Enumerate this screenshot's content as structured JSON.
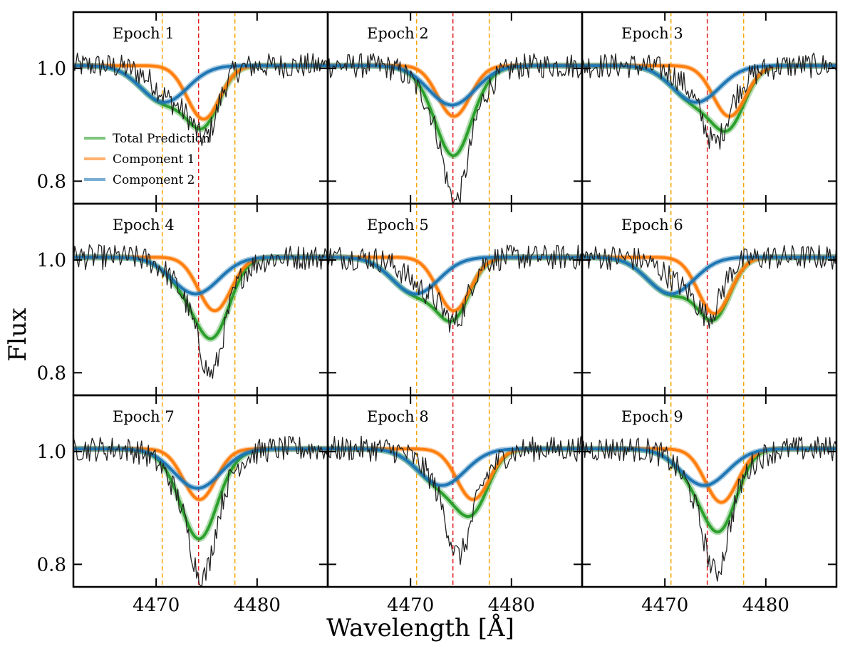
{
  "chart_data": {
    "type": "line",
    "layout": "3x3 grid of panels, shared axes",
    "xlabel": "Wavelength [Å]",
    "ylabel": "Flux",
    "xlim": [
      4461.8,
      4487.0
    ],
    "ylim": [
      0.76,
      1.1
    ],
    "xticks": [
      4470,
      4480
    ],
    "xtick_labels": [
      "4470",
      "4480"
    ],
    "yticks": [
      0.8,
      1.0
    ],
    "ytick_labels": [
      "0.8",
      "1.0"
    ],
    "line_center": 4474.2,
    "window_lines": [
      4470.6,
      4477.8
    ],
    "legend": {
      "position": "lower-left of Epoch 1 panel",
      "entries": [
        {
          "label": "Total Prediction",
          "color": "#2ca02c"
        },
        {
          "label": "Component 1",
          "color": "#ff7f0e"
        },
        {
          "label": "Component 2",
          "color": "#1f77b4"
        }
      ]
    },
    "colors": {
      "total": "#2ca02c",
      "component1": "#ff7f0e",
      "component2": "#1f77b4",
      "observed": "#222222",
      "center_line": "#e31a1c",
      "window_line": "#f5a500"
    },
    "panels": [
      {
        "title": "Epoch 1",
        "c1": {
          "center": 4474.7,
          "depth": 0.095,
          "sigma": 1.6
        },
        "c2": {
          "center": 4470.8,
          "depth": 0.065,
          "sigma": 2.3
        },
        "obs_dip": {
          "center": 4475.0,
          "depth": 0.145
        }
      },
      {
        "title": "Epoch 2",
        "c1": {
          "center": 4474.3,
          "depth": 0.09,
          "sigma": 1.6
        },
        "c2": {
          "center": 4474.1,
          "depth": 0.07,
          "sigma": 2.3
        },
        "obs_dip": {
          "center": 4474.5,
          "depth": 0.23
        }
      },
      {
        "title": "Epoch 3",
        "c1": {
          "center": 4476.4,
          "depth": 0.09,
          "sigma": 1.6
        },
        "c2": {
          "center": 4473.1,
          "depth": 0.065,
          "sigma": 2.3
        },
        "obs_dip": {
          "center": 4475.0,
          "depth": 0.13
        }
      },
      {
        "title": "Epoch 4",
        "c1": {
          "center": 4475.8,
          "depth": 0.095,
          "sigma": 1.6
        },
        "c2": {
          "center": 4473.9,
          "depth": 0.065,
          "sigma": 2.3
        },
        "obs_dip": {
          "center": 4475.5,
          "depth": 0.2
        }
      },
      {
        "title": "Epoch 5",
        "c1": {
          "center": 4474.3,
          "depth": 0.095,
          "sigma": 1.6
        },
        "c2": {
          "center": 4470.5,
          "depth": 0.065,
          "sigma": 2.3
        },
        "obs_dip": {
          "center": 4474.6,
          "depth": 0.13
        }
      },
      {
        "title": "Epoch 6",
        "c1": {
          "center": 4474.9,
          "depth": 0.1,
          "sigma": 1.6
        },
        "c2": {
          "center": 4470.6,
          "depth": 0.065,
          "sigma": 2.3
        },
        "obs_dip": {
          "center": 4474.5,
          "depth": 0.11
        }
      },
      {
        "title": "Epoch 7",
        "c1": {
          "center": 4474.3,
          "depth": 0.09,
          "sigma": 1.6
        },
        "c2": {
          "center": 4474.1,
          "depth": 0.07,
          "sigma": 2.3
        },
        "obs_dip": {
          "center": 4474.6,
          "depth": 0.22
        }
      },
      {
        "title": "Epoch 8",
        "c1": {
          "center": 4476.2,
          "depth": 0.09,
          "sigma": 1.6
        },
        "c2": {
          "center": 4473.1,
          "depth": 0.065,
          "sigma": 2.3
        },
        "obs_dip": {
          "center": 4474.8,
          "depth": 0.18
        }
      },
      {
        "title": "Epoch 9",
        "c1": {
          "center": 4475.6,
          "depth": 0.095,
          "sigma": 1.6
        },
        "c2": {
          "center": 4473.9,
          "depth": 0.065,
          "sigma": 2.3
        },
        "obs_dip": {
          "center": 4475.1,
          "depth": 0.21
        }
      }
    ]
  }
}
